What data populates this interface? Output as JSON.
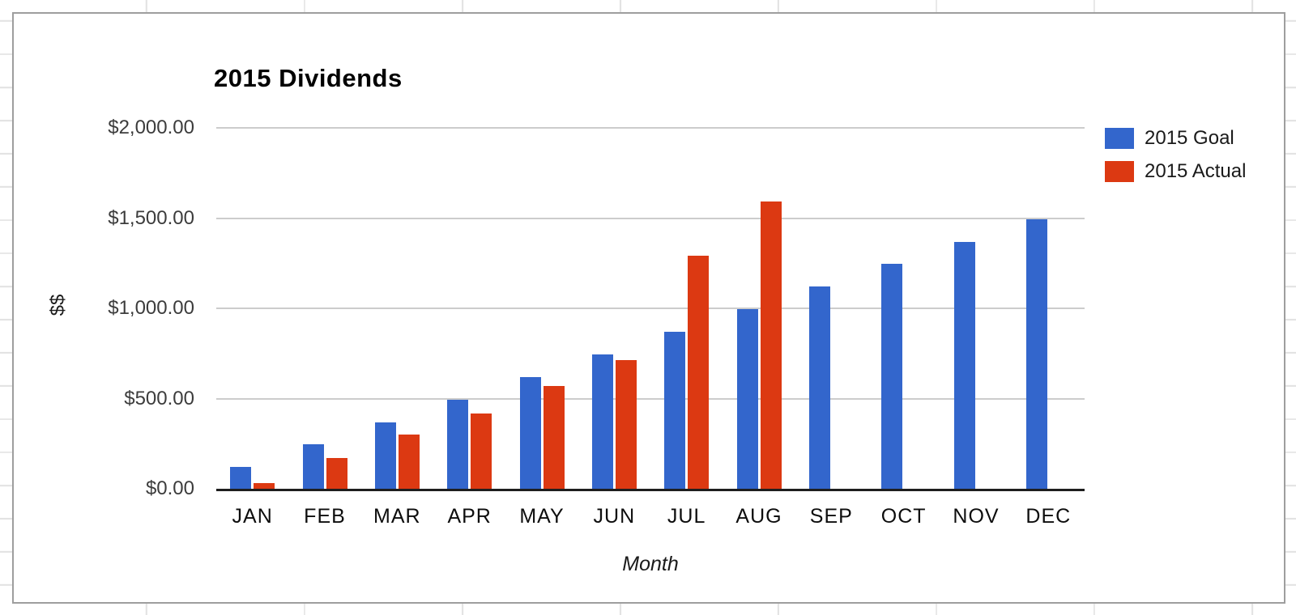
{
  "chart_data": {
    "type": "bar",
    "title": "2015 Dividends",
    "xlabel": "Month",
    "ylabel": "$$",
    "categories": [
      "JAN",
      "FEB",
      "MAR",
      "APR",
      "MAY",
      "JUN",
      "JUL",
      "AUG",
      "SEP",
      "OCT",
      "NOV",
      "DEC"
    ],
    "series": [
      {
        "name": "2015 Goal",
        "color": "#3366cc",
        "values": [
          120,
          245,
          370,
          495,
          620,
          745,
          870,
          995,
          1120,
          1245,
          1370,
          1495
        ]
      },
      {
        "name": "2015 Actual",
        "color": "#dc3912",
        "values": [
          30,
          170,
          300,
          415,
          570,
          715,
          1290,
          1590,
          null,
          null,
          null,
          null
        ]
      }
    ],
    "ylim": [
      0,
      2000
    ],
    "yticks": [
      {
        "value": 0,
        "label": "$0.00"
      },
      {
        "value": 500,
        "label": "$500.00"
      },
      {
        "value": 1000,
        "label": "$1,000.00"
      },
      {
        "value": 1500,
        "label": "$1,500.00"
      },
      {
        "value": 2000,
        "label": "$2,000.00"
      }
    ],
    "grid": true,
    "legend_position": "top-right"
  },
  "colors": {
    "goal_series": "#3366cc",
    "actual_series": "#dc3912",
    "gridline": "#cccccc",
    "axis_line": "#1e1e1e",
    "card_border": "#9e9e9e",
    "sheet_gridline": "#e3e3e3"
  }
}
